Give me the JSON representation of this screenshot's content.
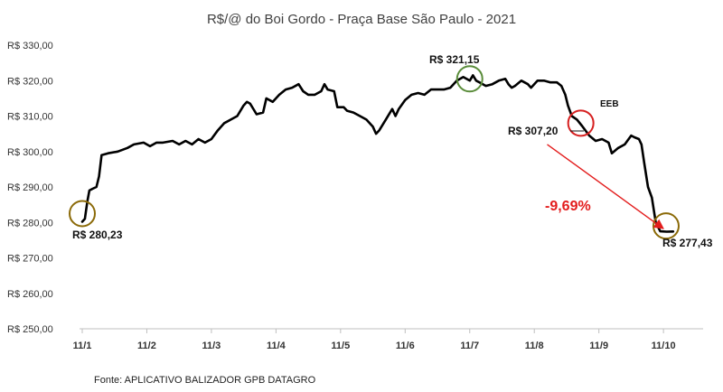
{
  "chart_data": {
    "type": "line",
    "title": "R$/@ do Boi Gordo - Praça  Base São Paulo - 2021",
    "xlabel": "",
    "ylabel": "",
    "ylim": [
      250,
      330
    ],
    "yticks": [
      "R$ 250,00",
      "R$ 260,00",
      "R$ 270,00",
      "R$ 280,00",
      "R$ 290,00",
      "R$ 300,00",
      "R$ 310,00",
      "R$ 320,00",
      "R$ 330,00"
    ],
    "ytick_values": [
      250,
      260,
      270,
      280,
      290,
      300,
      310,
      320,
      330
    ],
    "xticks": [
      "11/1",
      "11/2",
      "11/3",
      "11/4",
      "11/5",
      "11/6",
      "11/7",
      "11/8",
      "11/9",
      "11/10"
    ],
    "xlim": [
      0,
      9.25
    ],
    "grid": false,
    "legend": "none",
    "line_color": "#000000",
    "series": [
      {
        "values": [
          [
            0.0,
            280.2
          ],
          [
            0.04,
            281.0
          ],
          [
            0.08,
            286.0
          ],
          [
            0.11,
            289.0
          ],
          [
            0.16,
            289.5
          ],
          [
            0.22,
            290.0
          ],
          [
            0.26,
            293.0
          ],
          [
            0.3,
            299.0
          ],
          [
            0.4,
            299.5
          ],
          [
            0.55,
            300.0
          ],
          [
            0.7,
            301.0
          ],
          [
            0.8,
            302.0
          ],
          [
            0.95,
            302.5
          ],
          [
            1.05,
            301.5
          ],
          [
            1.15,
            302.5
          ],
          [
            1.25,
            302.5
          ],
          [
            1.4,
            303.0
          ],
          [
            1.5,
            302.0
          ],
          [
            1.6,
            303.0
          ],
          [
            1.7,
            302.0
          ],
          [
            1.8,
            303.5
          ],
          [
            1.9,
            302.5
          ],
          [
            2.0,
            303.5
          ],
          [
            2.1,
            306.0
          ],
          [
            2.2,
            308.0
          ],
          [
            2.3,
            309.0
          ],
          [
            2.4,
            310.0
          ],
          [
            2.5,
            313.0
          ],
          [
            2.55,
            314.0
          ],
          [
            2.6,
            313.5
          ],
          [
            2.7,
            310.5
          ],
          [
            2.8,
            311.0
          ],
          [
            2.85,
            315.0
          ],
          [
            2.95,
            314.0
          ],
          [
            3.05,
            316.0
          ],
          [
            3.15,
            317.5
          ],
          [
            3.25,
            318.0
          ],
          [
            3.35,
            319.0
          ],
          [
            3.42,
            317.0
          ],
          [
            3.5,
            316.0
          ],
          [
            3.6,
            316.0
          ],
          [
            3.7,
            317.0
          ],
          [
            3.75,
            319.0
          ],
          [
            3.8,
            317.5
          ],
          [
            3.9,
            317.0
          ],
          [
            3.95,
            312.5
          ],
          [
            4.05,
            312.5
          ],
          [
            4.1,
            311.5
          ],
          [
            4.2,
            311.0
          ],
          [
            4.3,
            310.0
          ],
          [
            4.4,
            309.0
          ],
          [
            4.5,
            307.0
          ],
          [
            4.55,
            305.0
          ],
          [
            4.6,
            306.0
          ],
          [
            4.7,
            309.0
          ],
          [
            4.8,
            312.0
          ],
          [
            4.85,
            310.0
          ],
          [
            4.9,
            312.0
          ],
          [
            5.0,
            314.5
          ],
          [
            5.1,
            316.0
          ],
          [
            5.2,
            316.5
          ],
          [
            5.3,
            316.0
          ],
          [
            5.4,
            317.5
          ],
          [
            5.5,
            317.5
          ],
          [
            5.6,
            317.5
          ],
          [
            5.7,
            318.0
          ],
          [
            5.8,
            320.0
          ],
          [
            5.9,
            321.0
          ],
          [
            6.0,
            320.0
          ],
          [
            6.05,
            321.5
          ],
          [
            6.1,
            320.0
          ],
          [
            6.15,
            319.5
          ],
          [
            6.25,
            318.5
          ],
          [
            6.35,
            319.0
          ],
          [
            6.45,
            320.0
          ],
          [
            6.55,
            320.5
          ],
          [
            6.6,
            319.0
          ],
          [
            6.65,
            318.0
          ],
          [
            6.7,
            318.5
          ],
          [
            6.8,
            320.0
          ],
          [
            6.9,
            319.0
          ],
          [
            6.95,
            318.0
          ],
          [
            7.05,
            320.0
          ],
          [
            7.15,
            320.0
          ],
          [
            7.25,
            319.5
          ],
          [
            7.35,
            319.5
          ],
          [
            7.42,
            318.5
          ],
          [
            7.48,
            316.0
          ],
          [
            7.52,
            313.0
          ],
          [
            7.58,
            310.0
          ],
          [
            7.66,
            309.0
          ],
          [
            7.74,
            307.2
          ],
          [
            7.85,
            304.5
          ],
          [
            7.95,
            303.0
          ],
          [
            8.05,
            303.5
          ],
          [
            8.15,
            302.5
          ],
          [
            8.2,
            299.5
          ],
          [
            8.3,
            301.0
          ],
          [
            8.4,
            302.0
          ],
          [
            8.5,
            304.5
          ],
          [
            8.55,
            304.0
          ],
          [
            8.62,
            303.5
          ],
          [
            8.66,
            302.0
          ],
          [
            8.7,
            297.0
          ],
          [
            8.76,
            290.0
          ],
          [
            8.82,
            287.0
          ],
          [
            8.88,
            280.0
          ],
          [
            8.95,
            277.5
          ],
          [
            9.05,
            277.4
          ],
          [
            9.15,
            277.43
          ]
        ]
      }
    ],
    "annotations": {
      "start_label": "R$ 280,23",
      "peak_label": "R$ 321,15",
      "eeb_label": "EEB",
      "eeb_value_label": "R$ 307,20",
      "end_label": "R$ 277,43",
      "change_label": "-9,69%"
    },
    "highlight_circles": [
      {
        "x": 0.0,
        "y": 282.5,
        "color": "#8b6a08"
      },
      {
        "x": 6.0,
        "y": 320.5,
        "color": "#5a8c3a"
      },
      {
        "x": 7.72,
        "y": 308.0,
        "color": "#d62020"
      },
      {
        "x": 9.04,
        "y": 279.0,
        "color": "#8b6a08"
      }
    ],
    "arrow": {
      "from": [
        7.2,
        302.0
      ],
      "to": [
        8.98,
        278.5
      ],
      "color": "#e31d1d"
    },
    "source": "Fonte: APLICATIVO BALIZADOR GPB DATAGRO"
  }
}
